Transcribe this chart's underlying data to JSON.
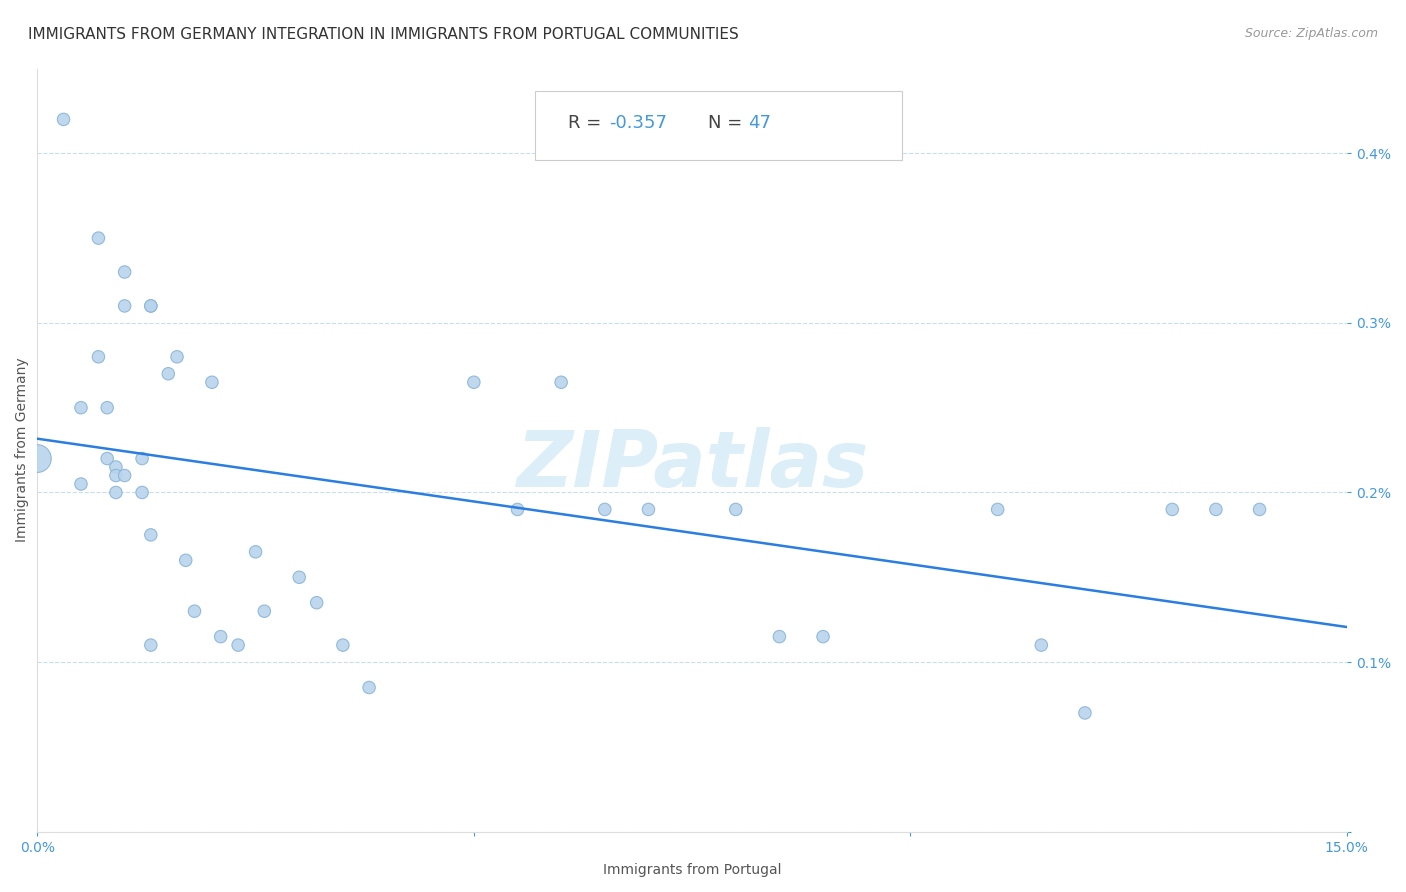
{
  "title": "IMMIGRANTS FROM GERMANY INTEGRATION IN IMMIGRANTS FROM PORTUGAL COMMUNITIES",
  "source": "Source: ZipAtlas.com",
  "xlabel": "Immigrants from Portugal",
  "ylabel": "Immigrants from Germany",
  "R": -0.357,
  "N": 47,
  "xlim": [
    0.0,
    0.15
  ],
  "ylim": [
    0.0,
    0.0045
  ],
  "xticks": [
    0.0,
    0.05,
    0.1,
    0.15
  ],
  "xticklabels": [
    "0.0%",
    "",
    "",
    "15.0%"
  ],
  "yticks": [
    0.0,
    0.001,
    0.002,
    0.003,
    0.004
  ],
  "yticklabels": [
    "",
    "0.1%",
    "0.2%",
    "0.3%",
    "0.4%"
  ],
  "scatter_color": "#b8d4ed",
  "scatter_edge_color": "#8ab4d8",
  "line_color": "#2a7de1",
  "tick_color": "#4499dd",
  "watermark_color": "#dceef8",
  "watermark": "ZIPatlas",
  "annotation_R_label": "R = ",
  "annotation_R_value": "-0.357",
  "annotation_N_label": "   N = ",
  "annotation_N_value": "47",
  "annotation_color_label": "#444444",
  "annotation_color_value": "#4499dd",
  "scatter_x": [
    0.0,
    0.003,
    0.005,
    0.005,
    0.007,
    0.007,
    0.008,
    0.008,
    0.009,
    0.009,
    0.009,
    0.01,
    0.01,
    0.01,
    0.012,
    0.012,
    0.013,
    0.013,
    0.013,
    0.013,
    0.015,
    0.016,
    0.017,
    0.018,
    0.02,
    0.021,
    0.023,
    0.025,
    0.026,
    0.03,
    0.032,
    0.035,
    0.038,
    0.05,
    0.055,
    0.06,
    0.065,
    0.07,
    0.08,
    0.085,
    0.09,
    0.11,
    0.115,
    0.12,
    0.13,
    0.135,
    0.14
  ],
  "scatter_y": [
    0.0022,
    0.0042,
    0.0025,
    0.00205,
    0.0035,
    0.0028,
    0.0025,
    0.0022,
    0.00215,
    0.0021,
    0.002,
    0.0033,
    0.0031,
    0.0021,
    0.0022,
    0.002,
    0.0031,
    0.0031,
    0.00175,
    0.0011,
    0.0027,
    0.0028,
    0.0016,
    0.0013,
    0.00265,
    0.00115,
    0.0011,
    0.00165,
    0.0013,
    0.0015,
    0.00135,
    0.0011,
    0.00085,
    0.00265,
    0.0019,
    0.00265,
    0.0019,
    0.0019,
    0.0019,
    0.00115,
    0.00115,
    0.0019,
    0.0011,
    0.0007,
    0.0019,
    0.0019,
    0.0019
  ],
  "scatter_sizes": [
    400,
    80,
    80,
    80,
    80,
    80,
    80,
    80,
    80,
    80,
    80,
    80,
    80,
    80,
    80,
    80,
    80,
    80,
    80,
    80,
    80,
    80,
    80,
    80,
    80,
    80,
    80,
    80,
    80,
    80,
    80,
    80,
    80,
    80,
    80,
    80,
    80,
    80,
    80,
    80,
    80,
    80,
    80,
    80,
    80,
    80,
    80
  ],
  "title_fontsize": 11,
  "axis_label_fontsize": 10,
  "tick_fontsize": 10,
  "annotation_fontsize": 13
}
